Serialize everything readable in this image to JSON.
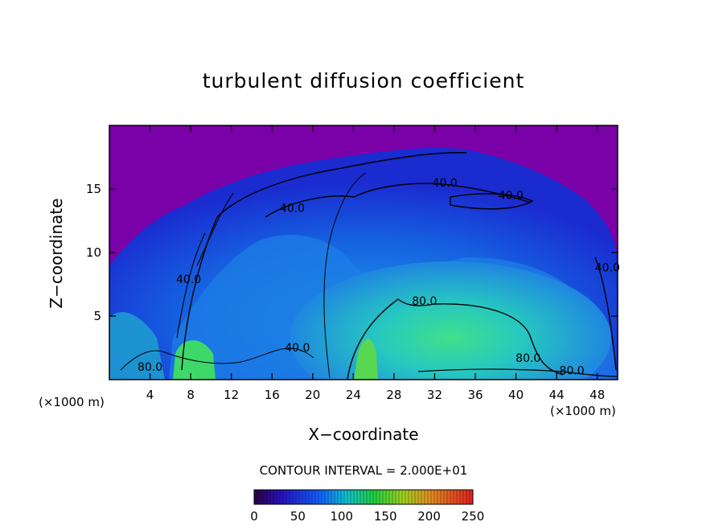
{
  "chart_data": {
    "type": "heatmap",
    "title": "turbulent diffusion coefficient",
    "xlabel": "X−coordinate",
    "ylabel": "Z−coordinate",
    "x_unit_label": "(×1000 m)",
    "x_ticks": [
      4,
      8,
      12,
      16,
      20,
      24,
      28,
      32,
      36,
      40,
      44,
      48
    ],
    "y_ticks": [
      5,
      10,
      15
    ],
    "xlim": [
      0,
      50
    ],
    "ylim": [
      0,
      20
    ],
    "contour_interval_text": "CONTOUR INTERVAL = 2.000E+01",
    "contour_labels": [
      {
        "text": "40.0",
        "x": 33.0,
        "y": 15.2
      },
      {
        "text": "40.0",
        "x": 39.5,
        "y": 14.2
      },
      {
        "text": "40.0",
        "x": 18.0,
        "y": 13.2
      },
      {
        "text": "40.0",
        "x": 7.8,
        "y": 7.6
      },
      {
        "text": "40.0",
        "x": 49.0,
        "y": 8.5
      },
      {
        "text": "80.0",
        "x": 31.0,
        "y": 5.9
      },
      {
        "text": "80.0",
        "x": 41.2,
        "y": 1.4
      },
      {
        "text": "80.0",
        "x": 45.5,
        "y": 0.4
      },
      {
        "text": "80.0",
        "x": 4.0,
        "y": 0.7
      },
      {
        "text": "40.0",
        "x": 18.5,
        "y": 2.2
      }
    ],
    "colorbar": {
      "ticks": [
        0,
        50,
        100,
        150,
        200,
        250
      ],
      "range": [
        0,
        250
      ]
    },
    "colors": {
      "background_field": "#7a00a8",
      "low": "#1a1acc",
      "mid": "#1f8ae6",
      "high": "#27d7a0",
      "peak": "#36e050"
    }
  }
}
